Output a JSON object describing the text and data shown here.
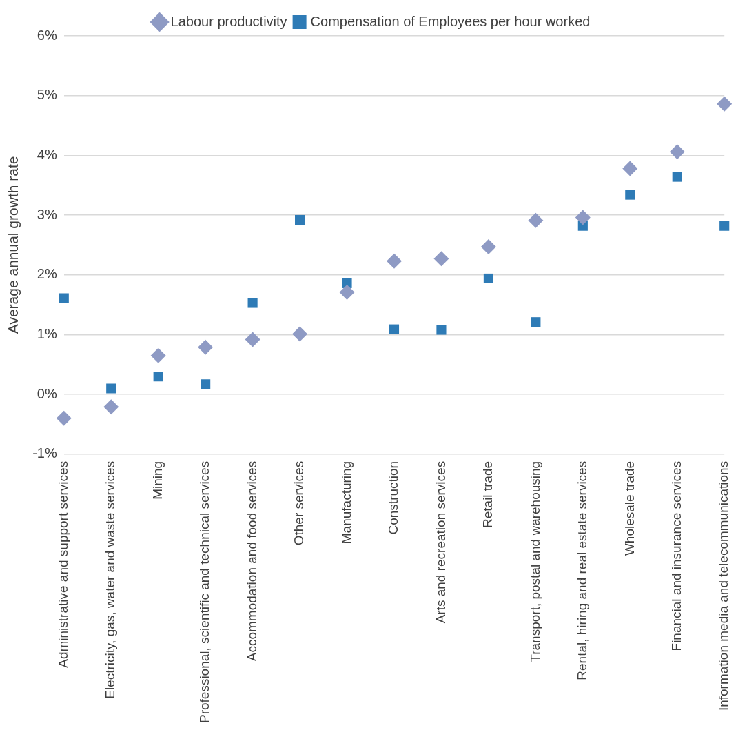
{
  "chart_data": {
    "type": "scatter",
    "ylabel": "Average annual growth rate",
    "categories": [
      "Administrative and support services",
      "Electricity, gas, water and waste services",
      "Mining",
      "Professional, scientific and technical services",
      "Accommodation and food services",
      "Other services",
      "Manufacturing",
      "Construction",
      "Arts and recreation services",
      "Retail trade",
      "Transport, postal and warehousing",
      "Rental, hiring and real estate services",
      "Wholesale trade",
      "Financial and insurance services",
      "Information media and telecommunications"
    ],
    "series": [
      {
        "name": "Labour productivity",
        "color": "#8e9ac4",
        "marker": "diamond",
        "values": [
          -0.4,
          -0.21,
          0.65,
          0.79,
          0.92,
          1.01,
          1.71,
          2.23,
          2.27,
          2.47,
          2.91,
          2.96,
          3.78,
          4.06,
          4.86
        ]
      },
      {
        "name": "Compensation of Employees per hour worked",
        "color": "#2e7bb6",
        "marker": "square",
        "values": [
          1.61,
          0.1,
          0.3,
          0.17,
          1.53,
          2.92,
          1.86,
          1.09,
          1.08,
          1.94,
          1.21,
          2.82,
          3.34,
          3.64,
          2.82
        ]
      }
    ],
    "ylim": [
      -1,
      6
    ],
    "yticks": [
      {
        "value": -1,
        "label": "-1%"
      },
      {
        "value": 0,
        "label": "0%"
      },
      {
        "value": 1,
        "label": "1%"
      },
      {
        "value": 2,
        "label": "2%"
      },
      {
        "value": 3,
        "label": "3%"
      },
      {
        "value": 4,
        "label": "4%"
      },
      {
        "value": 5,
        "label": "5%"
      },
      {
        "value": 6,
        "label": "6%"
      }
    ],
    "grid": "y",
    "legend": "top"
  }
}
